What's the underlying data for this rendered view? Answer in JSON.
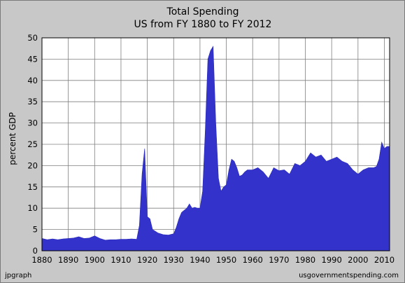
{
  "chart_data": {
    "type": "area",
    "title": "Total Spending",
    "subtitle": "US from FY 1880 to FY 2012",
    "ylabel": "percent GDP",
    "xlabel": "",
    "xlim": [
      1880,
      2012
    ],
    "ylim": [
      0,
      50
    ],
    "x_ticks": [
      1880,
      1890,
      1900,
      1910,
      1920,
      1930,
      1940,
      1950,
      1960,
      1970,
      1980,
      1990,
      2000,
      2010
    ],
    "y_ticks": [
      0,
      5,
      10,
      15,
      20,
      25,
      30,
      35,
      40,
      45,
      50
    ],
    "grid": true,
    "fill_color": "#3333cc",
    "plot_background": "#ffffff",
    "series": [
      {
        "x": [
          1880,
          1882,
          1884,
          1886,
          1888,
          1890,
          1892,
          1894,
          1896,
          1898,
          1900,
          1902,
          1904,
          1906,
          1908,
          1910,
          1912,
          1914,
          1916,
          1917,
          1918,
          1919,
          1920,
          1921,
          1922,
          1924,
          1926,
          1928,
          1930,
          1931,
          1932,
          1933,
          1934,
          1935,
          1936,
          1937,
          1938,
          1939,
          1940,
          1941,
          1942,
          1943,
          1944,
          1945,
          1946,
          1947,
          1948,
          1949,
          1950,
          1951,
          1952,
          1953,
          1954,
          1955,
          1956,
          1957,
          1958,
          1960,
          1962,
          1964,
          1966,
          1968,
          1970,
          1972,
          1974,
          1976,
          1978,
          1980,
          1982,
          1984,
          1986,
          1988,
          1990,
          1992,
          1994,
          1996,
          1998,
          2000,
          2002,
          2004,
          2006,
          2007,
          2008,
          2009,
          2010,
          2011,
          2012
        ],
        "y": [
          2.9,
          2.6,
          2.8,
          2.6,
          2.8,
          2.9,
          3.0,
          3.3,
          2.9,
          3.0,
          3.5,
          2.9,
          2.5,
          2.6,
          2.6,
          2.7,
          2.7,
          2.8,
          2.7,
          6.0,
          18.0,
          24.0,
          8.0,
          7.5,
          5.0,
          4.2,
          3.8,
          3.7,
          4.0,
          5.5,
          7.5,
          9.0,
          9.5,
          10.0,
          11.0,
          10.0,
          10.2,
          10.0,
          10.0,
          14.0,
          28.0,
          45.0,
          47.0,
          48.0,
          30.0,
          17.0,
          14.0,
          15.0,
          15.5,
          19.0,
          21.5,
          21.0,
          19.5,
          17.5,
          17.8,
          18.5,
          19.0,
          19.0,
          19.5,
          18.5,
          17.0,
          19.5,
          18.8,
          19.0,
          18.0,
          20.5,
          20.0,
          21.0,
          23.0,
          22.0,
          22.5,
          21.0,
          21.5,
          22.0,
          21.0,
          20.5,
          19.0,
          18.0,
          19.0,
          19.5,
          19.5,
          19.8,
          21.5,
          25.5,
          24.0,
          24.5,
          24.5
        ]
      }
    ]
  },
  "footer": {
    "left": "jpgraph",
    "right": "usgovernmentspending.com"
  }
}
